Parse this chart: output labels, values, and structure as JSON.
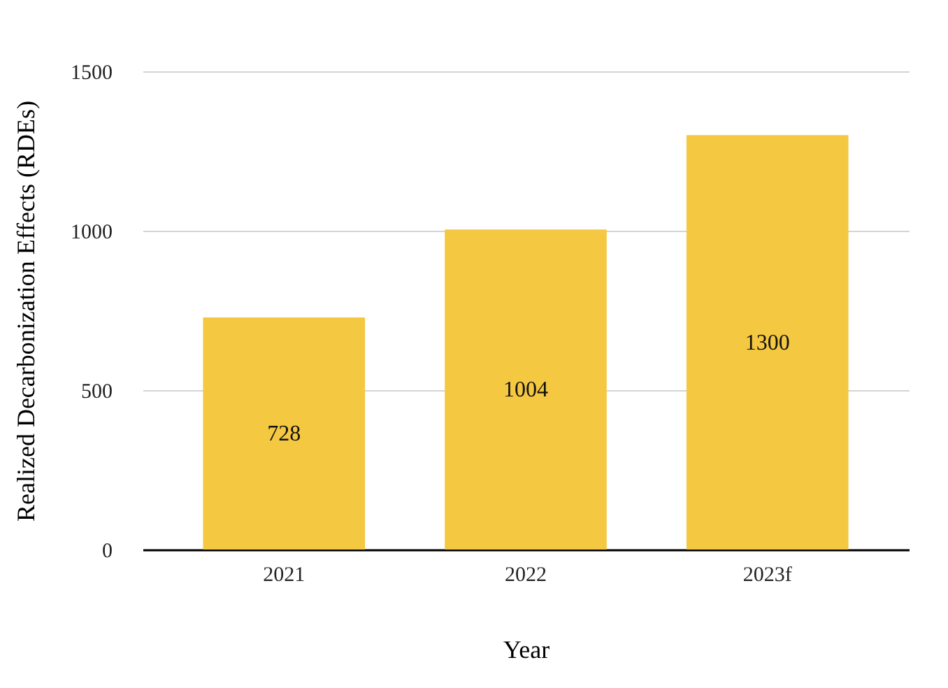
{
  "chart_data": {
    "type": "bar",
    "xlabel": "Year",
    "ylabel": "Realized Decarbonization Effects (RDEs)",
    "categories": [
      "2021",
      "2022",
      "2023f"
    ],
    "values": [
      728,
      1004,
      1300
    ],
    "color": "#f5c842",
    "ylim": [
      0,
      1500
    ],
    "yticks": [
      0,
      500,
      1000,
      1500
    ],
    "grid": "y",
    "data_labels": true
  }
}
